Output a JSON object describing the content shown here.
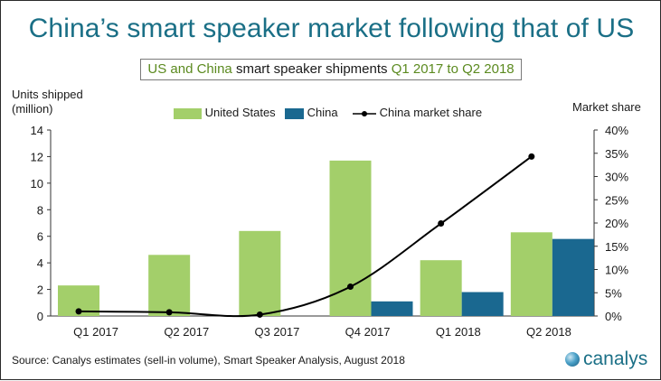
{
  "title": "China’s smart speaker market following that of US",
  "subtitle": {
    "part1": "US and China",
    "part2": " smart speaker shipments ",
    "part3": "Q1 2017 to Q2 2018"
  },
  "colors": {
    "title": "#1a6f86",
    "us_bar": "#a3cf6a",
    "china_bar": "#1a6890",
    "line": "#000000",
    "highlight": "#5b8a1f"
  },
  "source": "Source: Canalys estimates (sell-in volume), Smart Speaker Analysis, August 2018",
  "logo_text": "canalys",
  "logo_icon": "globe-icon",
  "chart_data": {
    "type": "bar",
    "categories": [
      "Q1 2017",
      "Q2 2017",
      "Q3 2017",
      "Q4 2017",
      "Q1 2018",
      "Q2 2018"
    ],
    "series": [
      {
        "name": "United States",
        "values": [
          2.3,
          4.6,
          6.4,
          11.7,
          4.2,
          6.3
        ],
        "axis": "left",
        "kind": "bar"
      },
      {
        "name": "China",
        "values": [
          0.0,
          0.0,
          0.0,
          1.1,
          1.8,
          5.8
        ],
        "axis": "left",
        "kind": "bar"
      },
      {
        "name": "China market share",
        "values": [
          1.0,
          0.8,
          0.3,
          6.3,
          19.9,
          34.3
        ],
        "axis": "right",
        "kind": "line"
      }
    ],
    "ylabel_left": [
      "Units shipped",
      "(million)"
    ],
    "ylabel_right": "Market share",
    "ylim_left": [
      0,
      14
    ],
    "ylim_right": [
      0,
      40
    ],
    "yticks_left": [
      "0",
      "2",
      "4",
      "6",
      "8",
      "10",
      "12",
      "14"
    ],
    "yticks_right": [
      "0%",
      "5%",
      "10%",
      "15%",
      "20%",
      "25%",
      "30%",
      "35%",
      "40%"
    ],
    "grid": false,
    "legend": "top"
  }
}
